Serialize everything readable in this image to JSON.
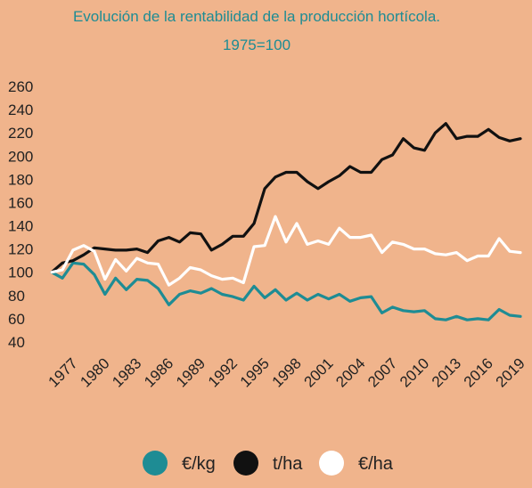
{
  "chart_data": {
    "type": "line",
    "title": "Evolución de la rentabilidad de la producción hortícola.",
    "subtitle": "1975=100",
    "xlabel": "",
    "ylabel": "",
    "ylim": [
      40,
      260
    ],
    "xlim": [
      1975,
      2019
    ],
    "yticks": [
      40,
      60,
      80,
      100,
      120,
      140,
      160,
      180,
      200,
      220,
      240,
      260
    ],
    "xticks": [
      "1977",
      "1980",
      "1983",
      "1986",
      "1989",
      "1992",
      "1995",
      "1998",
      "2001",
      "2004",
      "2007",
      "2010",
      "2013",
      "2016",
      "2019"
    ],
    "grid": false,
    "legend_position": "bottom",
    "x": [
      1975,
      1976,
      1977,
      1978,
      1979,
      1980,
      1981,
      1982,
      1983,
      1984,
      1985,
      1986,
      1987,
      1988,
      1989,
      1990,
      1991,
      1992,
      1993,
      1994,
      1995,
      1996,
      1997,
      1998,
      1999,
      2000,
      2001,
      2002,
      2003,
      2004,
      2005,
      2006,
      2007,
      2008,
      2009,
      2010,
      2011,
      2012,
      2013,
      2014,
      2015,
      2016,
      2017,
      2018,
      2019
    ],
    "series": [
      {
        "name": "€/kg",
        "color": "#1E8C94",
        "values": [
          100,
          95,
          108,
          107,
          98,
          81,
          95,
          85,
          94,
          93,
          86,
          72,
          81,
          84,
          82,
          86,
          81,
          79,
          76,
          88,
          78,
          85,
          76,
          82,
          76,
          81,
          77,
          81,
          75,
          78,
          79,
          65,
          70,
          67,
          66,
          67,
          60,
          59,
          62,
          59,
          60,
          59,
          68,
          63,
          62
        ]
      },
      {
        "name": "t/ha",
        "color": "#111111",
        "values": [
          100,
          108,
          110,
          115,
          121,
          120,
          119,
          119,
          120,
          117,
          127,
          130,
          126,
          134,
          133,
          119,
          124,
          131,
          131,
          142,
          172,
          182,
          186,
          186,
          178,
          172,
          178,
          183,
          191,
          186,
          186,
          197,
          201,
          215,
          207,
          205,
          220,
          228,
          215,
          217,
          217,
          223,
          216,
          213,
          215
        ]
      },
      {
        "name": "€/ha",
        "color": "#FFFFFF",
        "values": [
          100,
          102,
          119,
          123,
          118,
          94,
          111,
          101,
          112,
          108,
          107,
          89,
          95,
          104,
          102,
          97,
          94,
          95,
          91,
          122,
          123,
          148,
          126,
          142,
          124,
          127,
          124,
          138,
          130,
          130,
          132,
          117,
          126,
          124,
          120,
          120,
          116,
          115,
          117,
          110,
          114,
          114,
          129,
          118,
          117
        ]
      }
    ]
  }
}
